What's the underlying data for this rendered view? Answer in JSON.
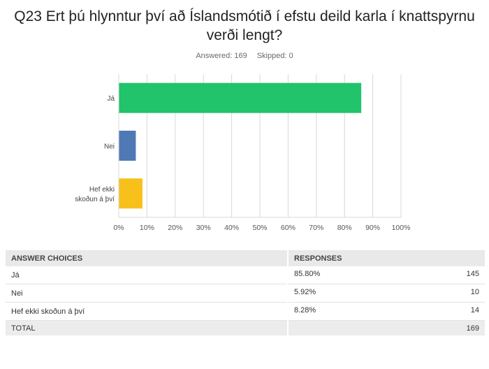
{
  "question": {
    "title": "Q23 Ert þú hlynntur því að Íslandsmótið í efstu deild karla í knattspyrnu verði lengt?",
    "answered_label": "Answered: 169",
    "skipped_label": "Skipped: 0"
  },
  "colors": {
    "ja": "#21c36b",
    "nei": "#4f79b5",
    "hef_ekki": "#f7c01a",
    "grid": "#d8d8d8"
  },
  "chart_data": {
    "type": "bar",
    "orientation": "horizontal",
    "categories": [
      "Já",
      "Nei",
      "Hef ekki skoðun á því"
    ],
    "category_lines": [
      [
        "Já"
      ],
      [
        "Nei"
      ],
      [
        "Hef ekki",
        "skoðun á því"
      ]
    ],
    "values": [
      85.8,
      5.92,
      8.28
    ],
    "xlim": [
      0,
      100
    ],
    "xticks": [
      0,
      10,
      20,
      30,
      40,
      50,
      60,
      70,
      80,
      90,
      100
    ],
    "xtick_labels": [
      "0%",
      "10%",
      "20%",
      "30%",
      "40%",
      "50%",
      "60%",
      "70%",
      "80%",
      "90%",
      "100%"
    ],
    "grid": true
  },
  "table": {
    "headers": [
      "ANSWER CHOICES",
      "RESPONSES"
    ],
    "rows": [
      {
        "choice": "Já",
        "percent": "85.80%",
        "count": "145"
      },
      {
        "choice": "Nei",
        "percent": "5.92%",
        "count": "10"
      },
      {
        "choice": "Hef ekki skoðun á því",
        "percent": "8.28%",
        "count": "14"
      }
    ],
    "total_label": "TOTAL",
    "total_count": "169"
  }
}
